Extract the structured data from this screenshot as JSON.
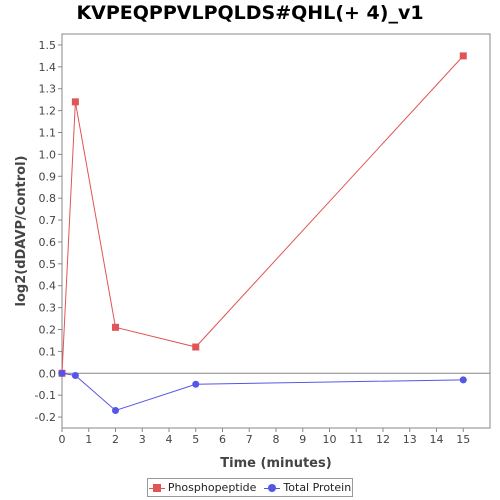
{
  "chart_data": {
    "type": "line",
    "title": "KVPEQPPVLPQLDS#QHL(+ 4)_v1",
    "xlabel": "Time (minutes)",
    "ylabel": "log2(dDAVP/Control)",
    "xlim": [
      0,
      16
    ],
    "ylim": [
      -0.25,
      1.55
    ],
    "x_ticks": [
      "0",
      "1",
      "2",
      "3",
      "4",
      "5",
      "6",
      "7",
      "8",
      "9",
      "10",
      "11",
      "12",
      "13",
      "14",
      "15"
    ],
    "y_ticks": [
      "-0.2",
      "-0.1",
      "0.0",
      "0.1",
      "0.2",
      "0.3",
      "0.4",
      "0.5",
      "0.6",
      "0.7",
      "0.8",
      "0.9",
      "1.0",
      "1.1",
      "1.2",
      "1.3",
      "1.4",
      "1.5"
    ],
    "grid": false,
    "legend_position": "bottom",
    "series": [
      {
        "name": "Phosphopeptide",
        "color": "#e05555",
        "marker": "square",
        "x": [
          0,
          0.5,
          2,
          5,
          15
        ],
        "y": [
          0.0,
          1.24,
          0.21,
          0.12,
          1.45
        ]
      },
      {
        "name": "Total Protein",
        "color": "#5555e8",
        "marker": "circle",
        "x": [
          0,
          0.5,
          2,
          5,
          15
        ],
        "y": [
          0.0,
          -0.01,
          -0.17,
          -0.05,
          -0.03
        ]
      }
    ]
  }
}
